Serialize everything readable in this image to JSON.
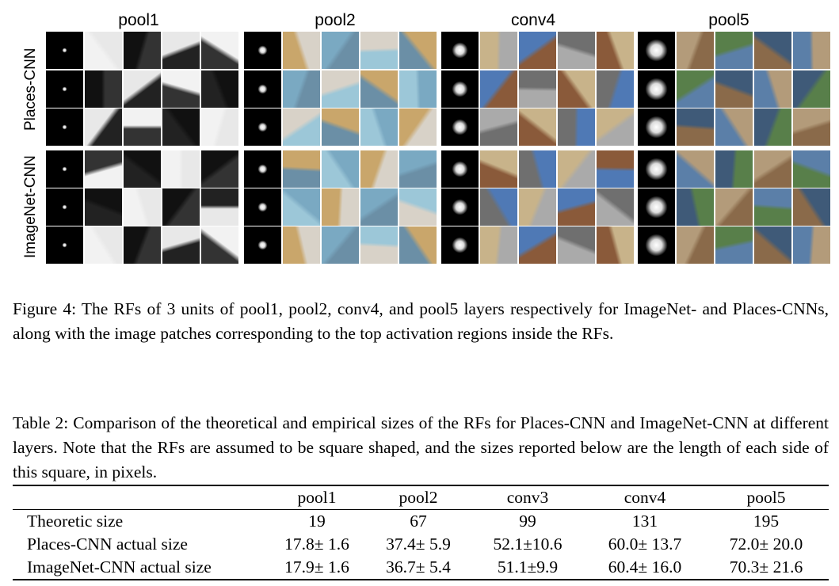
{
  "figure": {
    "columns": [
      "pool1",
      "pool2",
      "conv4",
      "pool5"
    ],
    "row_groups": [
      "Places-CNN",
      "ImageNet-CNN"
    ]
  },
  "caption4": "Figure 4: The RFs of 3 units of pool1, pool2, conv4, and pool5 layers respectively for ImageNet- and Places-CNNs, along with the image patches corresponding to the top activation regions inside the RFs.",
  "caption_table2": "Table 2: Comparison of the theoretical and empirical sizes of the RFs for Places-CNN and ImageNet-CNN at different layers. Note that the RFs are assumed to be square shaped, and the sizes reported below are the length of each side of this square, in pixels.",
  "table": {
    "headers": [
      "",
      "pool1",
      "pool2",
      "conv3",
      "conv4",
      "pool5"
    ],
    "rows": [
      [
        "Theoretic size",
        "19",
        "67",
        "99",
        "131",
        "195"
      ],
      [
        "Places-CNN actual size",
        "17.8± 1.6",
        "37.4± 5.9",
        "52.1±10.6",
        "60.0± 13.7",
        "72.0± 20.0"
      ],
      [
        "ImageNet-CNN actual size",
        "17.9± 1.6",
        "36.7± 5.4",
        "51.1±9.9",
        "60.4± 16.0",
        "70.3± 21.6"
      ]
    ]
  }
}
